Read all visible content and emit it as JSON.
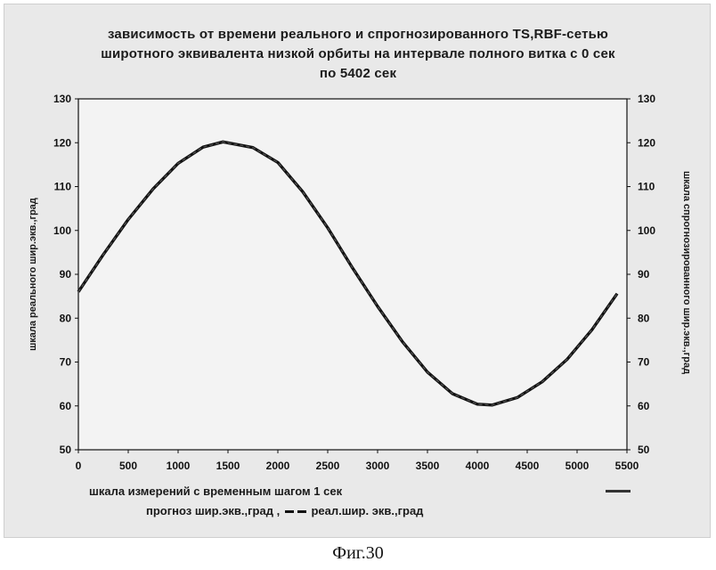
{
  "title": {
    "line1": "зависимость от времени реального и спрогнозированного TS,RBF-сетью",
    "line2": "широтного эквивалента низкой орбиты на интервале полного витка с 0 сек",
    "line3": "по 5402 сек"
  },
  "caption": "Фиг.30",
  "legend": {
    "forecast": "прогноз шир.экв.,град ,",
    "real": "реал.шир. экв.,град"
  },
  "colors": {
    "background": "#e9e9e9",
    "plot_area": "#f3f3f3",
    "line": "#111111"
  },
  "chart_data": {
    "type": "line",
    "xlabel": "шкала измерений с временным шагом 1 сек",
    "ylabel": "шкала реального шир.экв.,град",
    "y2label": "шкала спрогнозированного шир.экв.,град",
    "xlim": [
      0,
      5500
    ],
    "ylim": [
      50,
      130
    ],
    "y2lim": [
      50,
      130
    ],
    "xticks": [
      "0",
      "500",
      "1000",
      "1500",
      "2000",
      "2500",
      "3000",
      "3500",
      "4000",
      "4500",
      "5000",
      "5500"
    ],
    "yticks": [
      "50",
      "60",
      "70",
      "80",
      "90",
      "100",
      "110",
      "120",
      "130"
    ],
    "grid": false,
    "series": [
      {
        "name": "прогноз шир.экв.,град",
        "x": [
          0,
          250,
          500,
          750,
          1000,
          1250,
          1450,
          1750,
          2000,
          2250,
          2500,
          2750,
          3000,
          3250,
          3500,
          3750,
          4000,
          4150,
          4400,
          4650,
          4900,
          5150,
          5402
        ],
        "y": [
          86,
          94.5,
          102.5,
          109.5,
          115.3,
          119.0,
          120.2,
          118.9,
          115.5,
          108.8,
          100.6,
          91.4,
          82.7,
          74.6,
          67.7,
          62.8,
          60.4,
          60.2,
          61.9,
          65.5,
          70.6,
          77.4,
          85.6
        ]
      },
      {
        "name": "реал.шир. экв.,град",
        "x": [
          0,
          250,
          500,
          750,
          1000,
          1250,
          1450,
          1750,
          2000,
          2250,
          2500,
          2750,
          3000,
          3250,
          3500,
          3750,
          4000,
          4150,
          4400,
          4650,
          4900,
          5150,
          5402
        ],
        "y": [
          86,
          94.5,
          102.5,
          109.5,
          115.3,
          119.0,
          120.2,
          118.9,
          115.5,
          108.8,
          100.6,
          91.4,
          82.7,
          74.6,
          67.7,
          62.8,
          60.4,
          60.2,
          61.9,
          65.5,
          70.6,
          77.4,
          85.6
        ]
      }
    ]
  }
}
